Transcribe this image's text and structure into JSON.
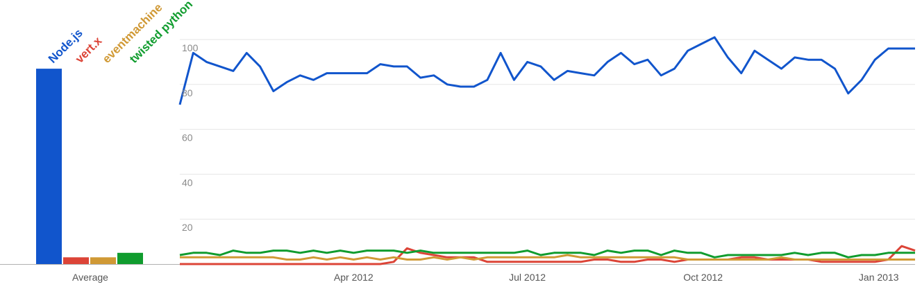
{
  "chart_data": [
    {
      "type": "bar",
      "categories": [
        "Node.js",
        "vert.x",
        "eventmachine",
        "twisted python"
      ],
      "values": [
        87,
        3,
        3,
        5
      ],
      "colors": [
        "#1155cc",
        "#dc4437",
        "#d09935",
        "#109c2e"
      ],
      "xlabel": "Average",
      "ylim": [
        0,
        100
      ]
    },
    {
      "type": "line",
      "x": [
        "2012-01-01",
        "2012-01-08",
        "2012-01-15",
        "2012-01-22",
        "2012-01-29",
        "2012-02-05",
        "2012-02-12",
        "2012-02-19",
        "2012-02-26",
        "2012-03-04",
        "2012-03-11",
        "2012-03-18",
        "2012-03-25",
        "2012-04-01",
        "2012-04-08",
        "2012-04-15",
        "2012-04-22",
        "2012-04-29",
        "2012-05-06",
        "2012-05-13",
        "2012-05-20",
        "2012-05-27",
        "2012-06-03",
        "2012-06-10",
        "2012-06-17",
        "2012-06-24",
        "2012-07-01",
        "2012-07-08",
        "2012-07-15",
        "2012-07-22",
        "2012-07-29",
        "2012-08-05",
        "2012-08-12",
        "2012-08-19",
        "2012-08-26",
        "2012-09-02",
        "2012-09-09",
        "2012-09-16",
        "2012-09-23",
        "2012-09-30",
        "2012-10-07",
        "2012-10-14",
        "2012-10-21",
        "2012-10-28",
        "2012-11-04",
        "2012-11-11",
        "2012-11-18",
        "2012-11-25",
        "2012-12-02",
        "2012-12-09",
        "2012-12-16",
        "2012-12-23",
        "2012-12-30",
        "2013-01-06",
        "2013-01-13",
        "2013-01-20"
      ],
      "xticks": [
        {
          "date": "2012-04-01",
          "label": "Apr 2012"
        },
        {
          "date": "2012-07-01",
          "label": "Jul 2012"
        },
        {
          "date": "2012-10-01",
          "label": "Oct 2012"
        },
        {
          "date": "2013-01-01",
          "label": "Jan 2013"
        }
      ],
      "yticks": [
        20,
        40,
        60,
        80,
        100
      ],
      "ylim": [
        0,
        100
      ],
      "grid": true,
      "series": [
        {
          "name": "Node.js",
          "color": "#1155cc",
          "values": [
            71,
            94,
            90,
            88,
            86,
            94,
            88,
            77,
            81,
            84,
            82,
            85,
            85,
            85,
            85,
            89,
            88,
            88,
            83,
            84,
            80,
            79,
            79,
            82,
            94,
            82,
            90,
            88,
            82,
            86,
            85,
            84,
            90,
            94,
            89,
            91,
            84,
            87,
            95,
            98,
            101,
            92,
            85,
            95,
            91,
            87,
            92,
            91,
            91,
            87,
            76,
            82,
            91,
            96,
            96,
            96
          ]
        },
        {
          "name": "vert.x",
          "color": "#dc4437",
          "values": [
            0,
            0,
            0,
            0,
            0,
            0,
            0,
            0,
            0,
            0,
            0,
            0,
            0,
            0,
            0,
            0,
            1,
            7,
            5,
            4,
            3,
            3,
            3,
            1,
            1,
            1,
            1,
            1,
            1,
            1,
            1,
            2,
            2,
            1,
            1,
            2,
            2,
            1,
            2,
            2,
            2,
            2,
            3,
            3,
            2,
            2,
            2,
            2,
            1,
            1,
            1,
            1,
            1,
            2,
            8,
            6
          ]
        },
        {
          "name": "eventmachine",
          "color": "#d09935",
          "values": [
            3,
            3,
            3,
            3,
            3,
            3,
            3,
            3,
            2,
            2,
            3,
            2,
            3,
            2,
            3,
            2,
            3,
            2,
            2,
            3,
            2,
            3,
            2,
            3,
            3,
            3,
            3,
            3,
            3,
            4,
            3,
            3,
            3,
            3,
            3,
            3,
            3,
            3,
            2,
            2,
            2,
            2,
            2,
            2,
            2,
            3,
            2,
            2,
            2,
            2,
            2,
            2,
            2,
            2,
            2,
            2
          ]
        },
        {
          "name": "twisted python",
          "color": "#109c2e",
          "values": [
            4,
            5,
            5,
            4,
            6,
            5,
            5,
            6,
            6,
            5,
            6,
            5,
            6,
            5,
            6,
            6,
            6,
            5,
            6,
            5,
            5,
            5,
            5,
            5,
            5,
            5,
            6,
            4,
            5,
            5,
            5,
            4,
            6,
            5,
            6,
            6,
            4,
            6,
            5,
            5,
            3,
            4,
            4,
            4,
            4,
            4,
            5,
            4,
            5,
            5,
            3,
            4,
            4,
            5,
            5,
            5
          ]
        }
      ]
    }
  ]
}
